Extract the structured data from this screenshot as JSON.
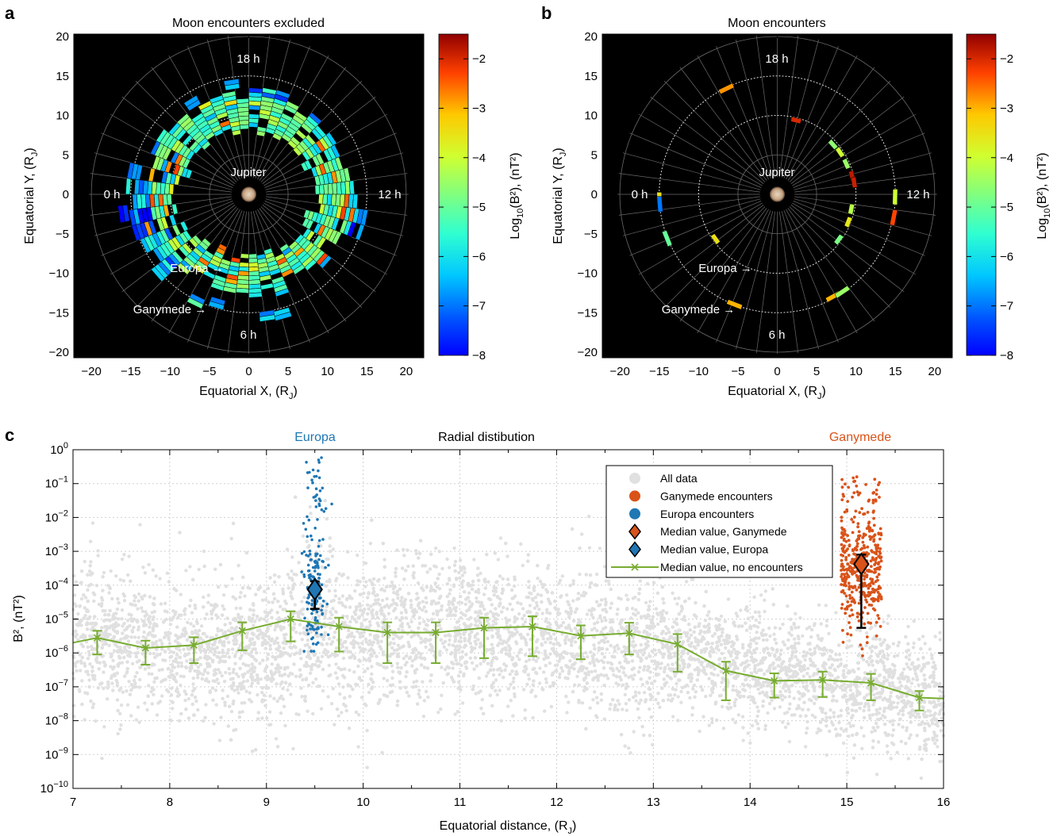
{
  "panels": {
    "a": {
      "letter": "a",
      "title": "Moon encounters excluded",
      "xlabel": "Equatorial X, (R",
      "xlabel_sub": "J",
      "ylabel": "Equatorial Y, (R",
      "ylabel_sub": "J",
      "cbar_label": "Log",
      "cbar_sub": "10",
      "cbar_label_rest": "(B²), (nT²)",
      "labels": {
        "h18": "18 h",
        "h0": "0 h",
        "h12": "12 h",
        "h6": "6 h",
        "jupiter": "Jupiter",
        "europa": "Europa →",
        "ganymede": "Ganymede →"
      }
    },
    "b": {
      "letter": "b",
      "title": "Moon encounters",
      "xlabel": "Equatorial X, (R",
      "xlabel_sub": "J",
      "ylabel": "Equatorial Y, (R",
      "ylabel_sub": "J",
      "cbar_label": "Log",
      "cbar_sub": "10",
      "cbar_label_rest": "(B²), (nT²)",
      "labels": {
        "h18": "18 h",
        "h0": "0 h",
        "h12": "12 h",
        "h6": "6 h",
        "jupiter": "Jupiter",
        "europa": "Europa →",
        "ganymede": "Ganymede →"
      }
    },
    "c": {
      "letter": "c",
      "title": "Radial distibution",
      "europa_label": "Europa",
      "ganymede_label": "Ganymede",
      "xlabel": "Equatorial distance, (R",
      "xlabel_sub": "J",
      "ylabel": "B², (nT²)"
    }
  },
  "colors": {
    "europa": "#1f77b4",
    "ganymede": "#d95319",
    "median_line": "#77ac30",
    "all_data": "#e0e0e0",
    "plot_bg_ab": "#000000"
  },
  "chart_data": [
    {
      "type": "heatmap",
      "title": "Moon encounters excluded",
      "xlim": [
        -22,
        22
      ],
      "ylim": [
        -21,
        21
      ],
      "xticks": [
        -20,
        -15,
        -10,
        -5,
        0,
        5,
        10,
        15,
        20
      ],
      "yticks": [
        -20,
        -15,
        -10,
        -5,
        0,
        5,
        10,
        15,
        20
      ],
      "colorbar": {
        "min": -8,
        "max": -1.5,
        "ticks": [
          -8,
          -7,
          -6,
          -5,
          -4,
          -3,
          -2
        ]
      },
      "description_rings": [
        5,
        10,
        15,
        20
      ]
    },
    {
      "type": "heatmap",
      "title": "Moon encounters",
      "xlim": [
        -22,
        22
      ],
      "ylim": [
        -21,
        21
      ],
      "xticks": [
        -20,
        -15,
        -10,
        -5,
        0,
        5,
        10,
        15,
        20
      ],
      "yticks": [
        -20,
        -15,
        -10,
        -5,
        0,
        5,
        10,
        15,
        20
      ],
      "colorbar": {
        "min": -8,
        "max": -1.5,
        "ticks": [
          -8,
          -7,
          -6,
          -5,
          -4,
          -3,
          -2
        ]
      }
    },
    {
      "type": "scatter",
      "title": "Radial distibution",
      "xlabel": "Equatorial distance, (RJ)",
      "ylabel": "B², (nT²)",
      "xlim": [
        7,
        16
      ],
      "ylim_log10": [
        -10,
        0
      ],
      "xticks": [
        7,
        8,
        9,
        10,
        11,
        12,
        13,
        14,
        15,
        16
      ],
      "yticks_log10": [
        -10,
        -9,
        -8,
        -7,
        -6,
        -5,
        -4,
        -3,
        -2,
        -1,
        0
      ],
      "legend": [
        "All data",
        "Ganymede encounters",
        "Europa encounters",
        "Median value, Ganymede",
        "Median value, Europa",
        "Median value, no encounters"
      ],
      "median_no_encounters": {
        "x": [
          7.0,
          7.25,
          7.75,
          8.25,
          8.75,
          9.25,
          9.75,
          10.25,
          10.75,
          11.25,
          11.75,
          12.25,
          12.75,
          13.25,
          13.75,
          14.25,
          14.75,
          15.25,
          15.75,
          16.0
        ],
        "y": [
          2e-06,
          2.8e-06,
          1.4e-06,
          1.7e-06,
          4.5e-06,
          1e-05,
          6e-06,
          4e-06,
          4e-06,
          5.5e-06,
          6e-06,
          3.2e-06,
          3.8e-06,
          1.8e-06,
          3e-07,
          1.5e-07,
          1.6e-07,
          1.3e-07,
          4.8e-08,
          4.5e-08
        ],
        "err_low": [
          null,
          9e-07,
          4.5e-07,
          5e-07,
          1.2e-06,
          2.2e-06,
          1.1e-06,
          5e-07,
          5e-07,
          7e-07,
          8e-07,
          6.5e-07,
          9e-07,
          2.8e-07,
          4e-08,
          4.8e-08,
          5e-08,
          4e-08,
          2e-08,
          null
        ],
        "err_high": [
          null,
          4.5e-06,
          2.3e-06,
          2.9e-06,
          8e-06,
          1.7e-05,
          1.1e-05,
          8e-06,
          8e-06,
          1.1e-05,
          1.2e-05,
          6.5e-06,
          7.8e-06,
          3.6e-06,
          5.5e-07,
          2.5e-07,
          2.8e-07,
          2.4e-07,
          7.5e-08,
          null
        ]
      },
      "median_europa": {
        "x": 9.5,
        "y": 7.5e-05,
        "err_low": 2e-05,
        "err_high": 0.00013
      },
      "median_ganymede": {
        "x": 15.15,
        "y": 0.00042,
        "err_low": 5.5e-06,
        "err_high": 0.0008
      }
    }
  ]
}
